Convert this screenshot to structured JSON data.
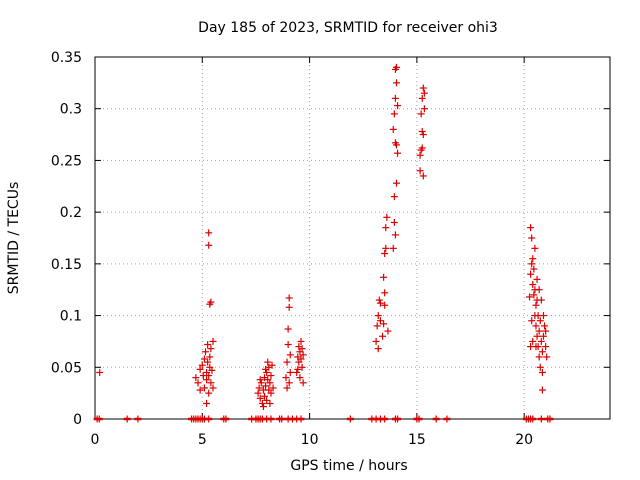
{
  "chart_data": {
    "type": "scatter",
    "title": "Day 185 of 2023, SRMTID for receiver ohi3",
    "xlabel": "GPS time / hours",
    "ylabel": "SRMTID / TECUs",
    "xlim": [
      0,
      24
    ],
    "ylim": [
      0,
      0.35
    ],
    "x_ticks": [
      0,
      5,
      10,
      15,
      20
    ],
    "x_tick_labels": [
      "0",
      "5",
      "10",
      "15",
      "20"
    ],
    "y_ticks": [
      0,
      0.05,
      0.1,
      0.15,
      0.2,
      0.25,
      0.3,
      0.35
    ],
    "y_tick_labels": [
      "0",
      "0.05",
      "0.1",
      "0.15",
      "0.2",
      "0.25",
      "0.3",
      "0.35"
    ],
    "grid": true,
    "marker": "+",
    "color": "#dd0000",
    "series": [
      {
        "name": "SRMTID",
        "points": [
          [
            0.22,
            0.045
          ],
          [
            4.7,
            0.04
          ],
          [
            4.8,
            0.035
          ],
          [
            4.9,
            0.048
          ],
          [
            5.0,
            0.052
          ],
          [
            5.05,
            0.042
          ],
          [
            5.1,
            0.058
          ],
          [
            5.1,
            0.03
          ],
          [
            5.15,
            0.065
          ],
          [
            5.2,
            0.045
          ],
          [
            5.2,
            0.038
          ],
          [
            5.25,
            0.055
          ],
          [
            5.25,
            0.072
          ],
          [
            5.3,
            0.025
          ],
          [
            5.3,
            0.042
          ],
          [
            5.35,
            0.06
          ],
          [
            5.35,
            0.05
          ],
          [
            5.4,
            0.035
          ],
          [
            5.4,
            0.068
          ],
          [
            5.45,
            0.047
          ],
          [
            5.5,
            0.075
          ],
          [
            5.5,
            0.03
          ],
          [
            5.2,
            0.015
          ],
          [
            5.3,
            0.18
          ],
          [
            5.3,
            0.168
          ],
          [
            5.4,
            0.113
          ],
          [
            5.35,
            0.111
          ],
          [
            4.9,
            0.028
          ],
          [
            7.6,
            0.025
          ],
          [
            7.65,
            0.03
          ],
          [
            7.7,
            0.02
          ],
          [
            7.75,
            0.035
          ],
          [
            7.8,
            0.015
          ],
          [
            7.85,
            0.028
          ],
          [
            7.9,
            0.04
          ],
          [
            7.9,
            0.022
          ],
          [
            7.95,
            0.032
          ],
          [
            8.0,
            0.045
          ],
          [
            8.0,
            0.018
          ],
          [
            8.05,
            0.038
          ],
          [
            8.1,
            0.05
          ],
          [
            8.1,
            0.028
          ],
          [
            8.15,
            0.035
          ],
          [
            8.2,
            0.042
          ],
          [
            8.2,
            0.025
          ],
          [
            8.25,
            0.052
          ],
          [
            8.3,
            0.03
          ],
          [
            7.85,
            0.012
          ],
          [
            8.05,
            0.055
          ],
          [
            7.7,
            0.038
          ],
          [
            7.95,
            0.048
          ],
          [
            8.15,
            0.015
          ],
          [
            8.9,
            0.04
          ],
          [
            8.95,
            0.055
          ],
          [
            9.0,
            0.072
          ],
          [
            9.0,
            0.087
          ],
          [
            9.05,
            0.117
          ],
          [
            9.05,
            0.108
          ],
          [
            9.1,
            0.045
          ],
          [
            9.1,
            0.062
          ],
          [
            8.95,
            0.03
          ],
          [
            9.05,
            0.035
          ],
          [
            9.4,
            0.045
          ],
          [
            9.45,
            0.06
          ],
          [
            9.5,
            0.055
          ],
          [
            9.5,
            0.07
          ],
          [
            9.55,
            0.04
          ],
          [
            9.6,
            0.058
          ],
          [
            9.6,
            0.075
          ],
          [
            9.65,
            0.05
          ],
          [
            9.7,
            0.062
          ],
          [
            9.7,
            0.035
          ],
          [
            9.55,
            0.065
          ],
          [
            9.45,
            0.048
          ],
          [
            9.65,
            0.068
          ],
          [
            13.1,
            0.075
          ],
          [
            13.15,
            0.09
          ],
          [
            13.2,
            0.068
          ],
          [
            13.2,
            0.1
          ],
          [
            13.25,
            0.115
          ],
          [
            13.3,
            0.095
          ],
          [
            13.3,
            0.112
          ],
          [
            13.4,
            0.08
          ],
          [
            13.45,
            0.092
          ],
          [
            13.5,
            0.11
          ],
          [
            13.45,
            0.137
          ],
          [
            13.5,
            0.16
          ],
          [
            13.55,
            0.165
          ],
          [
            13.55,
            0.185
          ],
          [
            13.6,
            0.195
          ],
          [
            13.5,
            0.122
          ],
          [
            13.65,
            0.085
          ],
          [
            13.9,
            0.165
          ],
          [
            13.95,
            0.19
          ],
          [
            13.95,
            0.215
          ],
          [
            14.0,
            0.178
          ],
          [
            14.05,
            0.228
          ],
          [
            14.05,
            0.265
          ],
          [
            14.0,
            0.267
          ],
          [
            14.1,
            0.257
          ],
          [
            13.95,
            0.295
          ],
          [
            14.0,
            0.31
          ],
          [
            14.05,
            0.34
          ],
          [
            14.0,
            0.338
          ],
          [
            14.05,
            0.325
          ],
          [
            14.1,
            0.303
          ],
          [
            13.9,
            0.28
          ],
          [
            15.15,
            0.24
          ],
          [
            15.2,
            0.26
          ],
          [
            15.25,
            0.262
          ],
          [
            15.25,
            0.278
          ],
          [
            15.3,
            0.235
          ],
          [
            15.3,
            0.275
          ],
          [
            15.2,
            0.295
          ],
          [
            15.25,
            0.31
          ],
          [
            15.3,
            0.32
          ],
          [
            15.35,
            0.315
          ],
          [
            15.35,
            0.3
          ],
          [
            15.15,
            0.255
          ],
          [
            20.3,
            0.185
          ],
          [
            20.35,
            0.175
          ],
          [
            20.35,
            0.15
          ],
          [
            20.4,
            0.155
          ],
          [
            20.3,
            0.14
          ],
          [
            20.4,
            0.13
          ],
          [
            20.45,
            0.12
          ],
          [
            20.5,
            0.1
          ],
          [
            20.5,
            0.125
          ],
          [
            20.55,
            0.11
          ],
          [
            20.55,
            0.09
          ],
          [
            20.6,
            0.08
          ],
          [
            20.6,
            0.115
          ],
          [
            20.65,
            0.1
          ],
          [
            20.65,
            0.07
          ],
          [
            20.7,
            0.085
          ],
          [
            20.7,
            0.06
          ],
          [
            20.75,
            0.095
          ],
          [
            20.75,
            0.05
          ],
          [
            20.8,
            0.075
          ],
          [
            20.8,
            0.115
          ],
          [
            20.85,
            0.065
          ],
          [
            20.85,
            0.045
          ],
          [
            20.9,
            0.08
          ],
          [
            20.9,
            0.1
          ],
          [
            20.95,
            0.09
          ],
          [
            21.0,
            0.07
          ],
          [
            21.0,
            0.085
          ],
          [
            20.85,
            0.028
          ],
          [
            20.4,
            0.075
          ],
          [
            20.45,
            0.145
          ],
          [
            20.5,
            0.165
          ],
          [
            20.6,
            0.135
          ],
          [
            20.7,
            0.125
          ],
          [
            20.35,
            0.095
          ],
          [
            21.05,
            0.06
          ],
          [
            20.25,
            0.118
          ],
          [
            20.3,
            0.07
          ],
          [
            20.55,
            0.07
          ]
        ]
      }
    ],
    "zero_markers_x": [
      0.1,
      0.2,
      1.5,
      2.0,
      4.5,
      4.6,
      4.7,
      4.8,
      4.9,
      5.0,
      5.1,
      5.3,
      6.0,
      6.1,
      7.3,
      7.5,
      7.6,
      7.7,
      7.8,
      8.0,
      8.2,
      8.6,
      8.7,
      9.0,
      9.2,
      9.4,
      9.6,
      11.9,
      12.9,
      13.1,
      13.3,
      13.5,
      14.0,
      14.1,
      15.0,
      15.1,
      15.9,
      16.4,
      20.1,
      20.2,
      20.3,
      20.4,
      20.8,
      21.1,
      21.2
    ]
  }
}
